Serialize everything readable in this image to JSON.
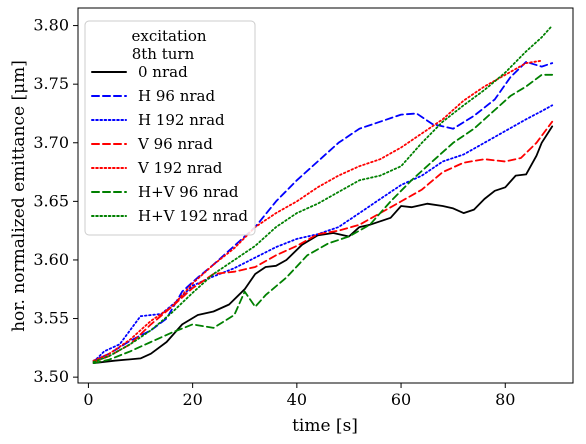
{
  "chart_data": {
    "type": "line",
    "xlabel": "time [s]",
    "ylabel": "hor. normalized emittance [μm]",
    "xlim": [
      -2,
      93
    ],
    "ylim": [
      3.495,
      3.815
    ],
    "xticks": [
      0,
      20,
      40,
      60,
      80
    ],
    "yticks": [
      3.5,
      3.55,
      3.6,
      3.65,
      3.7,
      3.75,
      3.8
    ],
    "ytick_labels": [
      "3.50",
      "3.55",
      "3.60",
      "3.65",
      "3.70",
      "3.75",
      "3.80"
    ],
    "grid": false,
    "legend": {
      "placement": "top-left",
      "title_line1": "excitation",
      "title_line2": "8th turn"
    },
    "series": [
      {
        "name": "0 nrad",
        "color": "#000000",
        "dash": "solid",
        "points": [
          [
            1,
            3.512
          ],
          [
            5,
            3.514
          ],
          [
            10,
            3.516
          ],
          [
            12,
            3.52
          ],
          [
            15,
            3.53
          ],
          [
            18,
            3.545
          ],
          [
            21,
            3.553
          ],
          [
            24,
            3.556
          ],
          [
            27,
            3.562
          ],
          [
            30,
            3.575
          ],
          [
            32,
            3.588
          ],
          [
            34,
            3.594
          ],
          [
            36,
            3.595
          ],
          [
            38,
            3.6
          ],
          [
            41,
            3.613
          ],
          [
            44,
            3.621
          ],
          [
            47,
            3.623
          ],
          [
            50,
            3.62
          ],
          [
            52,
            3.628
          ],
          [
            54,
            3.63
          ],
          [
            56,
            3.633
          ],
          [
            58,
            3.636
          ],
          [
            60,
            3.646
          ],
          [
            62,
            3.645
          ],
          [
            65,
            3.648
          ],
          [
            68,
            3.646
          ],
          [
            70,
            3.644
          ],
          [
            72,
            3.64
          ],
          [
            74,
            3.643
          ],
          [
            76,
            3.652
          ],
          [
            78,
            3.659
          ],
          [
            80,
            3.662
          ],
          [
            82,
            3.672
          ],
          [
            84,
            3.673
          ],
          [
            86,
            3.689
          ],
          [
            87,
            3.7
          ],
          [
            89,
            3.714
          ]
        ]
      },
      {
        "name": "H 96 nrad",
        "color": "#0000ff",
        "dash": "dashed",
        "points": [
          [
            1,
            3.514
          ],
          [
            4,
            3.52
          ],
          [
            8,
            3.531
          ],
          [
            12,
            3.54
          ],
          [
            15,
            3.55
          ],
          [
            18,
            3.573
          ],
          [
            21,
            3.585
          ],
          [
            24,
            3.596
          ],
          [
            28,
            3.612
          ],
          [
            32,
            3.628
          ],
          [
            36,
            3.65
          ],
          [
            40,
            3.668
          ],
          [
            44,
            3.684
          ],
          [
            48,
            3.7
          ],
          [
            52,
            3.712
          ],
          [
            56,
            3.718
          ],
          [
            60,
            3.724
          ],
          [
            63,
            3.725
          ],
          [
            66,
            3.716
          ],
          [
            70,
            3.712
          ],
          [
            74,
            3.723
          ],
          [
            78,
            3.737
          ],
          [
            81,
            3.756
          ],
          [
            84,
            3.769
          ],
          [
            87,
            3.765
          ],
          [
            89,
            3.768
          ]
        ]
      },
      {
        "name": "H 192 nrad",
        "color": "#0000ff",
        "dash": "dotted",
        "points": [
          [
            1,
            3.513
          ],
          [
            3,
            3.522
          ],
          [
            6,
            3.528
          ],
          [
            10,
            3.552
          ],
          [
            14,
            3.554
          ],
          [
            17,
            3.565
          ],
          [
            20,
            3.578
          ],
          [
            24,
            3.586
          ],
          [
            28,
            3.593
          ],
          [
            32,
            3.602
          ],
          [
            36,
            3.611
          ],
          [
            40,
            3.618
          ],
          [
            44,
            3.622
          ],
          [
            48,
            3.628
          ],
          [
            52,
            3.64
          ],
          [
            56,
            3.652
          ],
          [
            60,
            3.664
          ],
          [
            64,
            3.672
          ],
          [
            68,
            3.684
          ],
          [
            72,
            3.69
          ],
          [
            76,
            3.7
          ],
          [
            80,
            3.71
          ],
          [
            84,
            3.72
          ],
          [
            87,
            3.727
          ],
          [
            89,
            3.732
          ]
        ]
      },
      {
        "name": "V 96 nrad",
        "color": "#ff0000",
        "dash": "dashed",
        "points": [
          [
            1,
            3.513
          ],
          [
            4,
            3.518
          ],
          [
            8,
            3.528
          ],
          [
            12,
            3.545
          ],
          [
            16,
            3.56
          ],
          [
            20,
            3.576
          ],
          [
            24,
            3.588
          ],
          [
            28,
            3.59
          ],
          [
            32,
            3.594
          ],
          [
            36,
            3.604
          ],
          [
            40,
            3.612
          ],
          [
            44,
            3.622
          ],
          [
            48,
            3.625
          ],
          [
            52,
            3.63
          ],
          [
            56,
            3.64
          ],
          [
            60,
            3.65
          ],
          [
            64,
            3.66
          ],
          [
            68,
            3.675
          ],
          [
            72,
            3.683
          ],
          [
            76,
            3.686
          ],
          [
            80,
            3.684
          ],
          [
            83,
            3.687
          ],
          [
            86,
            3.7
          ],
          [
            89,
            3.718
          ]
        ]
      },
      {
        "name": "V 192 nrad",
        "color": "#ff0000",
        "dash": "dotted",
        "points": [
          [
            1,
            3.514
          ],
          [
            4,
            3.52
          ],
          [
            8,
            3.532
          ],
          [
            12,
            3.548
          ],
          [
            16,
            3.56
          ],
          [
            20,
            3.58
          ],
          [
            24,
            3.596
          ],
          [
            28,
            3.61
          ],
          [
            32,
            3.628
          ],
          [
            36,
            3.64
          ],
          [
            40,
            3.65
          ],
          [
            44,
            3.662
          ],
          [
            48,
            3.672
          ],
          [
            52,
            3.68
          ],
          [
            56,
            3.686
          ],
          [
            60,
            3.696
          ],
          [
            64,
            3.708
          ],
          [
            68,
            3.72
          ],
          [
            72,
            3.736
          ],
          [
            76,
            3.748
          ],
          [
            80,
            3.758
          ],
          [
            84,
            3.768
          ],
          [
            87,
            3.77
          ]
        ]
      },
      {
        "name": "H+V 96 nrad",
        "color": "#008000",
        "dash": "dashed",
        "points": [
          [
            1,
            3.512
          ],
          [
            4,
            3.515
          ],
          [
            8,
            3.522
          ],
          [
            12,
            3.53
          ],
          [
            16,
            3.538
          ],
          [
            20,
            3.545
          ],
          [
            24,
            3.542
          ],
          [
            28,
            3.553
          ],
          [
            30,
            3.573
          ],
          [
            32,
            3.56
          ],
          [
            34,
            3.57
          ],
          [
            38,
            3.585
          ],
          [
            42,
            3.604
          ],
          [
            46,
            3.614
          ],
          [
            50,
            3.62
          ],
          [
            54,
            3.63
          ],
          [
            58,
            3.65
          ],
          [
            62,
            3.668
          ],
          [
            66,
            3.684
          ],
          [
            70,
            3.7
          ],
          [
            74,
            3.712
          ],
          [
            78,
            3.728
          ],
          [
            81,
            3.74
          ],
          [
            84,
            3.748
          ],
          [
            87,
            3.758
          ],
          [
            89,
            3.758
          ]
        ]
      },
      {
        "name": "H+V 192 nrad",
        "color": "#008000",
        "dash": "dotted",
        "points": [
          [
            1,
            3.513
          ],
          [
            4,
            3.518
          ],
          [
            8,
            3.528
          ],
          [
            12,
            3.54
          ],
          [
            16,
            3.555
          ],
          [
            20,
            3.572
          ],
          [
            24,
            3.588
          ],
          [
            28,
            3.6
          ],
          [
            32,
            3.612
          ],
          [
            36,
            3.628
          ],
          [
            40,
            3.64
          ],
          [
            44,
            3.648
          ],
          [
            48,
            3.658
          ],
          [
            52,
            3.668
          ],
          [
            56,
            3.672
          ],
          [
            60,
            3.68
          ],
          [
            64,
            3.7
          ],
          [
            68,
            3.718
          ],
          [
            72,
            3.732
          ],
          [
            76,
            3.745
          ],
          [
            80,
            3.76
          ],
          [
            84,
            3.778
          ],
          [
            87,
            3.79
          ],
          [
            89,
            3.8
          ]
        ]
      }
    ]
  }
}
